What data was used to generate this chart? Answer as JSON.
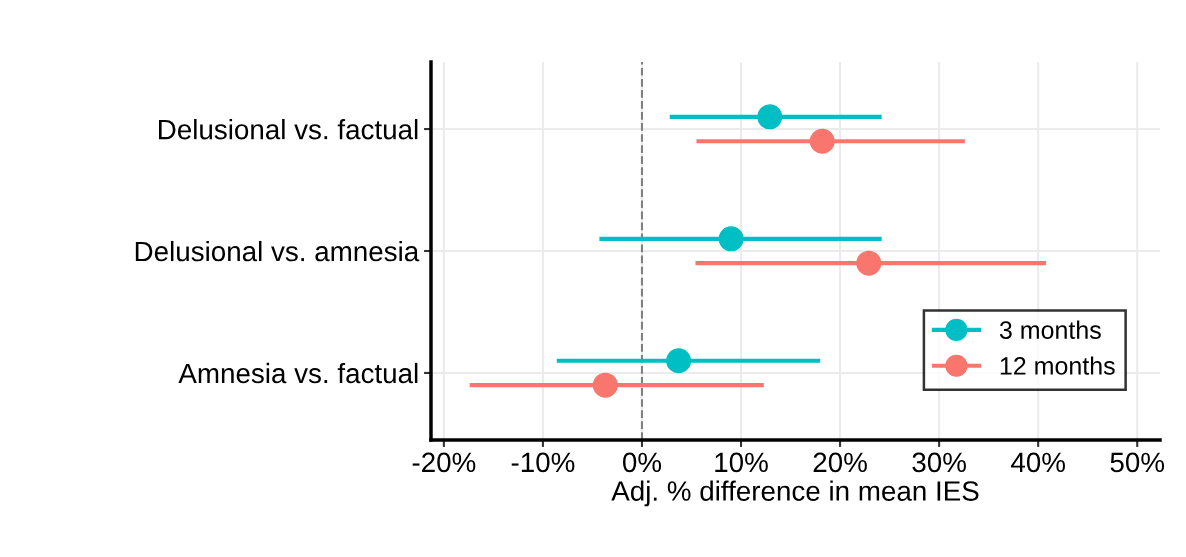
{
  "chart_data": {
    "type": "scatter",
    "orientation": "horizontal",
    "categories": [
      "Delusional vs. factual",
      "Delusional vs. amnesia",
      "Amnesia vs. factual"
    ],
    "series": [
      {
        "name": "3 months",
        "color": "#00bfc4",
        "values": [
          12.9,
          9.0,
          3.7
        ],
        "errors": [
          [
            2.8,
            24.2
          ],
          [
            -4.3,
            24.2
          ],
          [
            -8.6,
            18.0
          ]
        ]
      },
      {
        "name": "12 months",
        "color": "#f8766d",
        "values": [
          18.2,
          22.9,
          -3.7
        ],
        "errors": [
          [
            5.5,
            32.6
          ],
          [
            5.4,
            40.8
          ],
          [
            -17.4,
            12.3
          ]
        ]
      }
    ],
    "xlabel": "Adj. % difference in mean IES",
    "xlim": [
      -21.3,
      52.3
    ],
    "xticks": [
      {
        "value": -20,
        "label": "-20%"
      },
      {
        "value": -10,
        "label": "-10%"
      },
      {
        "value": 0,
        "label": "0%"
      },
      {
        "value": 10,
        "label": "10%"
      },
      {
        "value": 20,
        "label": "20%"
      },
      {
        "value": 30,
        "label": "30%"
      },
      {
        "value": 40,
        "label": "40%"
      },
      {
        "value": 50,
        "label": "50%"
      }
    ],
    "ref_lines": [
      {
        "axis": "x",
        "value": 0,
        "color": "#808080",
        "line_style": "dashed"
      }
    ],
    "grid": true,
    "legend": "bottom right",
    "marker": "circle",
    "line_style": "solid"
  }
}
